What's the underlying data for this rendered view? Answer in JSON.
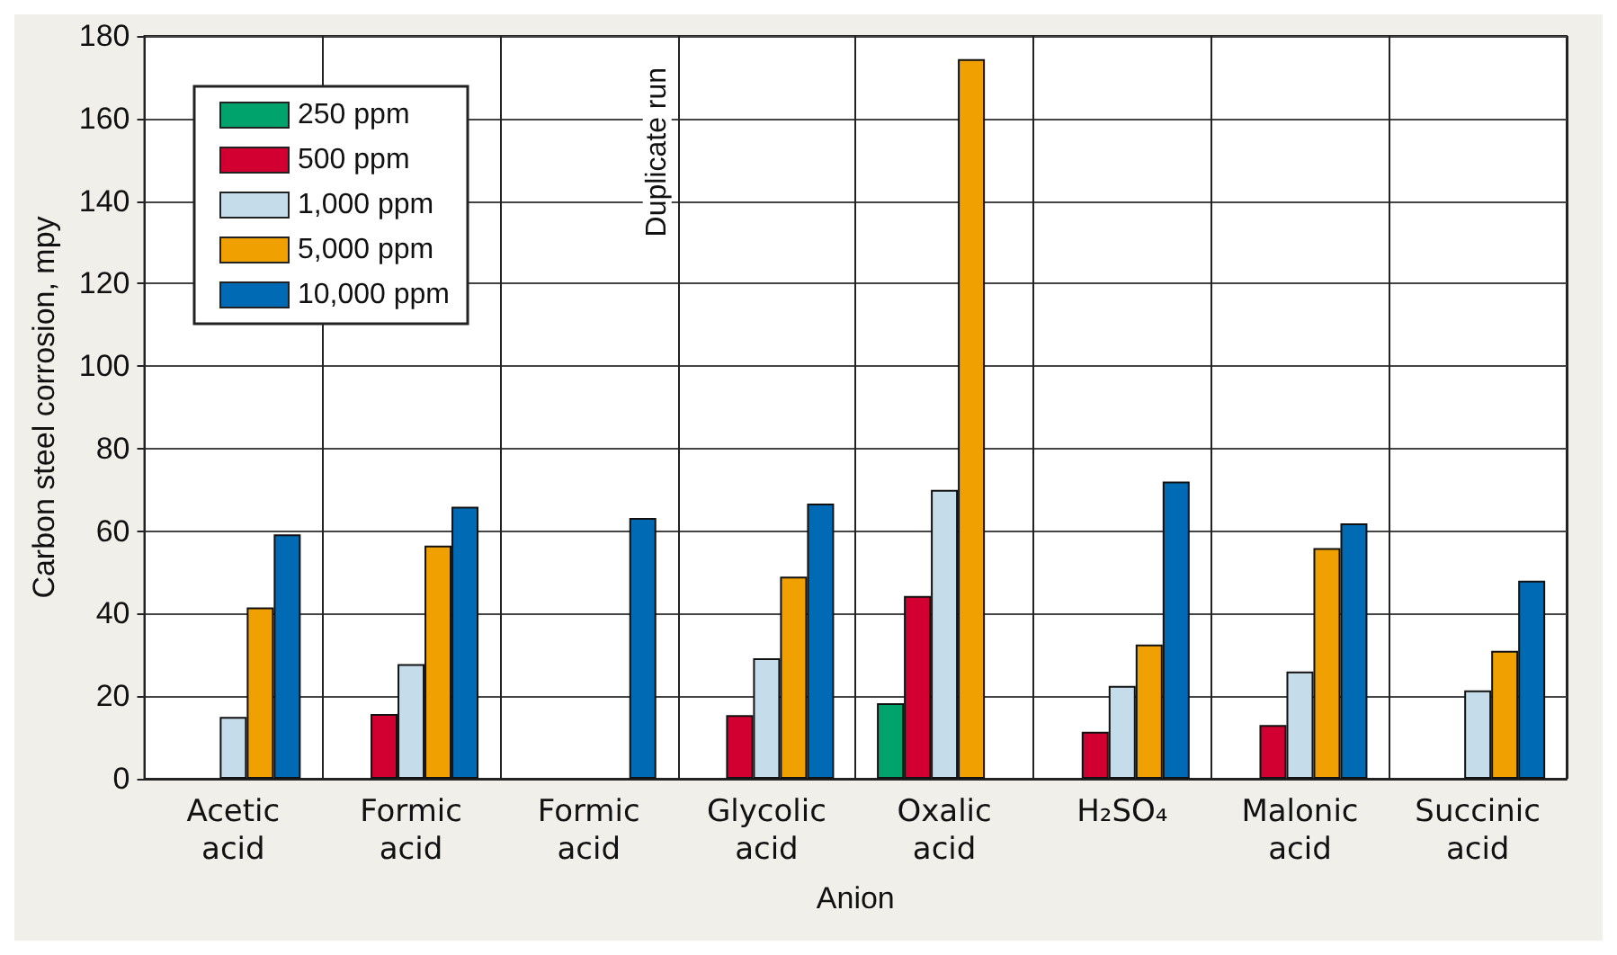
{
  "chart_data": {
    "type": "bar",
    "xlabel": "Anion",
    "ylabel": "Carbon steel corrosion, mpy",
    "categories": [
      "Acetic\nacid",
      "Formic\nacid",
      "Formic\nacid",
      "Glycolic\nacid",
      "Oxalic\nacid",
      "H₂SO₄",
      "Malonic\nacid",
      "Succinic\nacid"
    ],
    "series": [
      {
        "name": "250 ppm",
        "color": "#00a36c",
        "values": [
          null,
          null,
          null,
          null,
          18.3,
          null,
          null,
          null
        ]
      },
      {
        "name": "500 ppm",
        "color": "#d20030",
        "values": [
          null,
          15.7,
          null,
          15.4,
          44.3,
          11.4,
          13,
          null
        ]
      },
      {
        "name": "1,000 ppm",
        "color": "#c5dcea",
        "values": [
          15,
          27.8,
          null,
          29.2,
          70,
          22.5,
          26,
          21.4
        ]
      },
      {
        "name": "5,000 ppm",
        "color": "#f0a000",
        "values": [
          41.5,
          56.5,
          null,
          49,
          174.4,
          32.5,
          55.9,
          31
        ]
      },
      {
        "name": "10,000 ppm",
        "color": "#006ab4",
        "values": [
          59.2,
          65.9,
          63.2,
          66.7,
          null,
          72,
          61.9,
          48
        ]
      }
    ],
    "annotations": [
      "Duplicate run"
    ],
    "ylim": [
      0,
      180
    ],
    "yticks": [
      0,
      20,
      40,
      60,
      80,
      100,
      120,
      140,
      160,
      180
    ],
    "grid": true,
    "legend": "top left"
  }
}
